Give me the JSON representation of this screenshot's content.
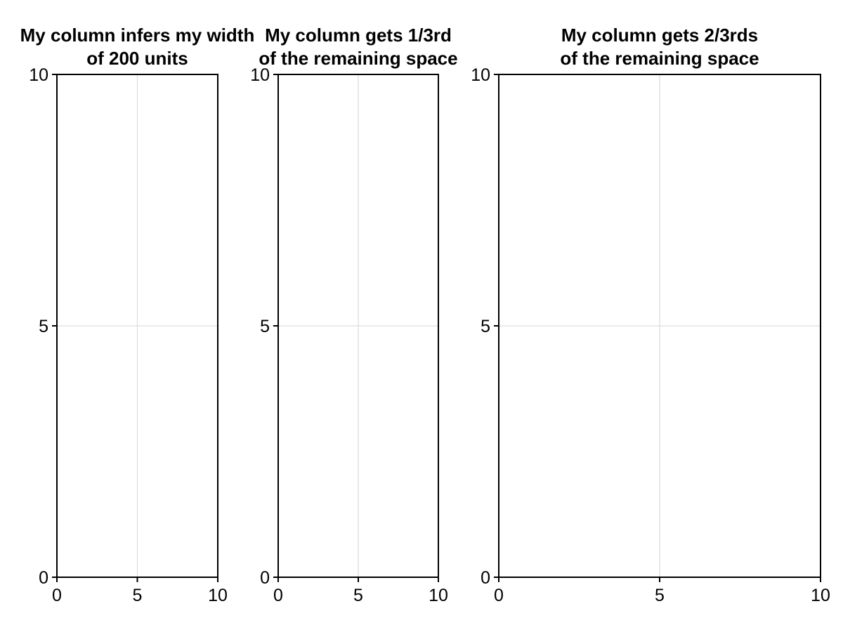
{
  "chart_data": [
    {
      "type": "scatter",
      "title": "My column infers my width\nof 200 units",
      "xlim": [
        0,
        10
      ],
      "ylim": [
        0,
        10
      ],
      "xticks": [
        "0",
        "5",
        "10"
      ],
      "yticks": [
        "0",
        "5",
        "10"
      ],
      "grid": true,
      "series": []
    },
    {
      "type": "scatter",
      "title": "My column gets 1/3rd\nof the remaining space",
      "xlim": [
        0,
        10
      ],
      "ylim": [
        0,
        10
      ],
      "xticks": [
        "0",
        "5",
        "10"
      ],
      "yticks": [
        "0",
        "5",
        "10"
      ],
      "grid": true,
      "series": []
    },
    {
      "type": "scatter",
      "title": "My column gets 2/3rds\nof the remaining space",
      "xlim": [
        0,
        10
      ],
      "ylim": [
        0,
        10
      ],
      "xticks": [
        "0",
        "5",
        "10"
      ],
      "yticks": [
        "0",
        "5",
        "10"
      ],
      "grid": true,
      "series": []
    }
  ],
  "colors": {
    "frame": "#000000",
    "grid": "#dddddd",
    "background": "#ffffff"
  }
}
